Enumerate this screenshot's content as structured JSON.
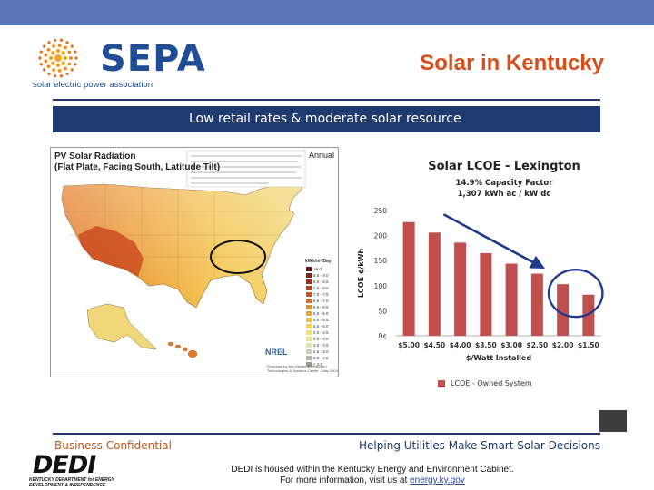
{
  "header": {
    "logo_text": "SEPA",
    "logo_tagline": "solar electric power association",
    "slide_title": "Solar in Kentucky"
  },
  "banner": {
    "text": "Low retail rates & moderate solar resource"
  },
  "map_panel": {
    "title_line1": "PV Solar Radiation",
    "title_line2": "(Flat Plate, Facing South, Latitude Tilt)",
    "annual_label": "Annual",
    "legend_title": "kWh/m²/Day",
    "legend_items": [
      ">9.0",
      "8.5 - 9.0",
      "8.0 - 8.5",
      "7.5 - 8.0",
      "7.0 - 7.5",
      "6.5 - 7.0",
      "6.0 - 6.5",
      "5.5 - 6.0",
      "5.0 - 5.5",
      "4.5 - 5.0",
      "4.0 - 4.5",
      "3.5 - 4.0",
      "3.0 - 3.5",
      "2.5 - 3.0",
      "2.0 - 2.5",
      "< 2.0"
    ],
    "legend_colors": [
      "#6b1a12",
      "#8a2314",
      "#a52d16",
      "#bb3b1b",
      "#cf4e21",
      "#de6a28",
      "#e88a2e",
      "#efa536",
      "#f4bd3e",
      "#f7d24c",
      "#f6df6d",
      "#f0e48f",
      "#e3e1a8",
      "#cfcfb4",
      "#b8b8a8",
      "#9c9a8c"
    ],
    "nrel_label": "NREL",
    "credit_text": "Produced by the Electric & Hydrogen Technologies & Systems Center - May 2004",
    "map_colors": {
      "southwest": "#c8401a",
      "west": "#e37a2a",
      "central": "#eea33a",
      "east": "#f4c652",
      "northeast": "#f2d778",
      "northwest": "#f6dc70",
      "highlight_circle": "#111111"
    }
  },
  "chart": {
    "title": "Solar LCOE - Lexington",
    "subtitle1": "14.9% Capacity Factor",
    "subtitle2": "1,307 kWh ac / kW dc",
    "bar_color": "#c0504d",
    "arrow_color": "#1f3a8a",
    "circle_color": "#1f3a8a"
  },
  "chart_data": {
    "type": "bar",
    "title": "Solar LCOE - Lexington",
    "xlabel": "$/Watt Installed",
    "ylabel": "LCOE ¢/kWh",
    "categories": [
      "$5.00",
      "$4.50",
      "$4.00",
      "$3.50",
      "$3.00",
      "$2.50",
      "$2.00",
      "$1.50"
    ],
    "series": [
      {
        "name": "LCOE - Owned System",
        "values": [
          227,
          206,
          186,
          165,
          144,
          124,
          103,
          82
        ]
      }
    ],
    "ylim": [
      0,
      250
    ],
    "yticks": [
      0,
      50,
      100,
      150,
      200,
      250
    ],
    "yticklabels": [
      "0¢",
      "50",
      "100",
      "150",
      "200",
      "250"
    ],
    "grid": false,
    "legend_position": "bottom"
  },
  "footer": {
    "left": "Business Confidential",
    "right": "Helping Utilities Make Smart Solar Decisions"
  },
  "bottom": {
    "dedi_logo": "DEDI",
    "dedi_sub1": "KENTUCKY DEPARTMENT for ENERGY",
    "dedi_sub2": "DEVELOPMENT & INDEPENDENCE",
    "line1": "DEDI is housed within the Kentucky Energy and Environment Cabinet.",
    "line2_prefix": "For more information, visit us at ",
    "link": "energy.ky.gov"
  }
}
